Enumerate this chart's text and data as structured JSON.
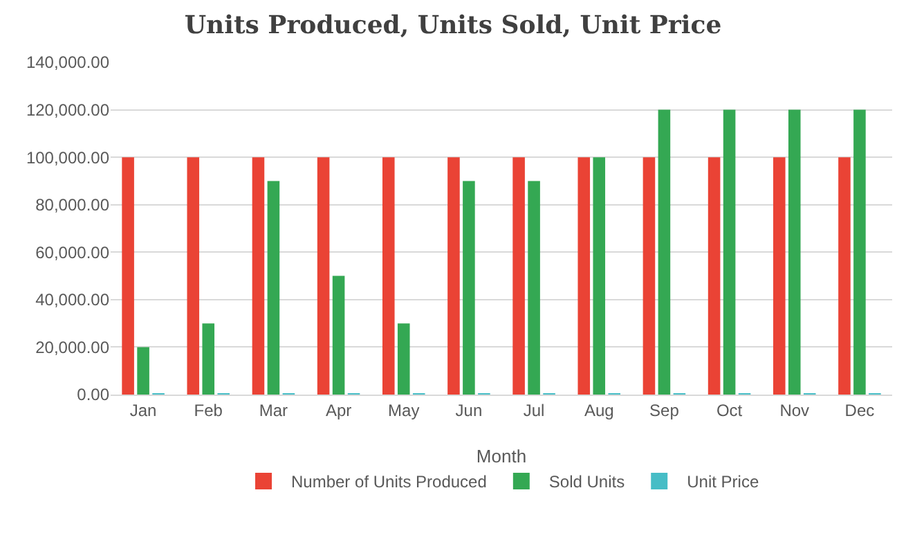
{
  "chart_data": {
    "type": "bar",
    "title": "Units Produced, Units Sold, Unit Price",
    "xlabel": "Month",
    "categories": [
      "Jan",
      "Feb",
      "Mar",
      "Apr",
      "May",
      "Jun",
      "Jul",
      "Aug",
      "Sep",
      "Oct",
      "Nov",
      "Dec"
    ],
    "series": [
      {
        "name": "Number of Units Produced",
        "color": "#ea4335",
        "values": [
          100000,
          100000,
          100000,
          100000,
          100000,
          100000,
          100000,
          100000,
          100000,
          100000,
          100000,
          100000
        ]
      },
      {
        "name": "Sold Units",
        "color": "#34a853",
        "values": [
          20000,
          30000,
          90000,
          50000,
          30000,
          90000,
          90000,
          100000,
          120000,
          120000,
          120000,
          120000
        ]
      },
      {
        "name": "Unit Price",
        "color": "#46bdc6",
        "values": [
          500,
          500,
          500,
          500,
          500,
          500,
          500,
          500,
          500,
          500,
          500,
          500
        ]
      }
    ],
    "ylim": [
      0,
      140000
    ],
    "yticks": [
      {
        "value": 0,
        "label": "0.00"
      },
      {
        "value": 20000,
        "label": "20,000.00"
      },
      {
        "value": 40000,
        "label": "40,000.00"
      },
      {
        "value": 60000,
        "label": "60,000.00"
      },
      {
        "value": 80000,
        "label": "80,000.00"
      },
      {
        "value": 100000,
        "label": "100,000.00"
      },
      {
        "value": 120000,
        "label": "120,000.00"
      },
      {
        "value": 140000,
        "label": "140,000.00"
      }
    ],
    "grid": "y",
    "legend": "bottom"
  }
}
